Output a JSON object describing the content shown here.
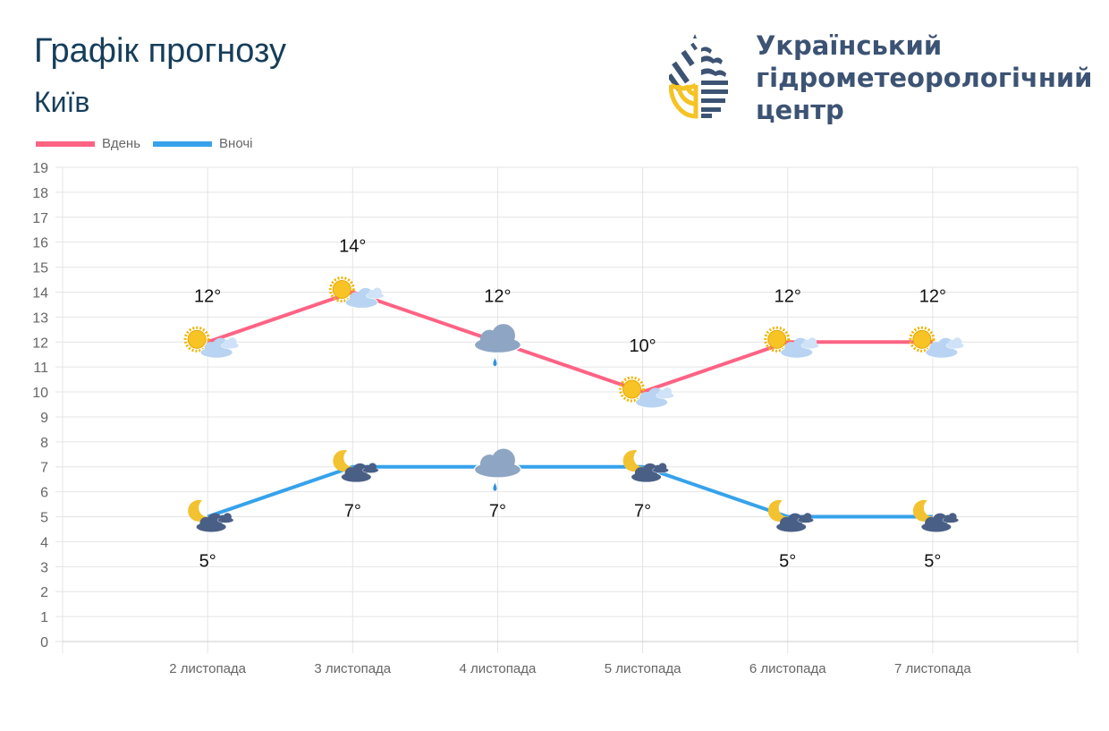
{
  "header": {
    "title": "Графік прогнозу",
    "city": "Київ"
  },
  "org": {
    "line1": "Український",
    "line2": "гідрометеорологічний",
    "line3": "центр",
    "colors": {
      "dark": "#3c5374",
      "yellow": "#f5c324"
    }
  },
  "chart_data": {
    "type": "line",
    "categories": [
      "2 листопада",
      "3 листопада",
      "4 листопада",
      "5 листопада",
      "6 листопада",
      "7 листопада"
    ],
    "series": [
      {
        "name": "Вдень",
        "color": "#ff6384",
        "values": [
          12,
          14,
          12,
          10,
          12,
          12
        ],
        "labels": [
          "12°",
          "14°",
          "12°",
          "10°",
          "12°",
          "12°"
        ],
        "icons": [
          "sun-cloud",
          "sun-cloud",
          "cloud-rain",
          "sun-cloud",
          "sun-cloud",
          "sun-cloud"
        ]
      },
      {
        "name": "Вночі",
        "color": "#36a2eb",
        "values": [
          5,
          7,
          7,
          7,
          5,
          5
        ],
        "labels": [
          "5°",
          "7°",
          "7°",
          "7°",
          "5°",
          "5°"
        ],
        "icons": [
          "moon-cloud",
          "moon-cloud",
          "cloud-rain",
          "moon-cloud",
          "moon-cloud",
          "moon-cloud"
        ]
      }
    ],
    "ylim": [
      0,
      19
    ],
    "yticks": [
      "0",
      "1",
      "2",
      "3",
      "4",
      "5",
      "6",
      "7",
      "8",
      "9",
      "10",
      "11",
      "12",
      "13",
      "14",
      "15",
      "16",
      "17",
      "18",
      "19"
    ],
    "grid": true,
    "legend": "top-left"
  }
}
